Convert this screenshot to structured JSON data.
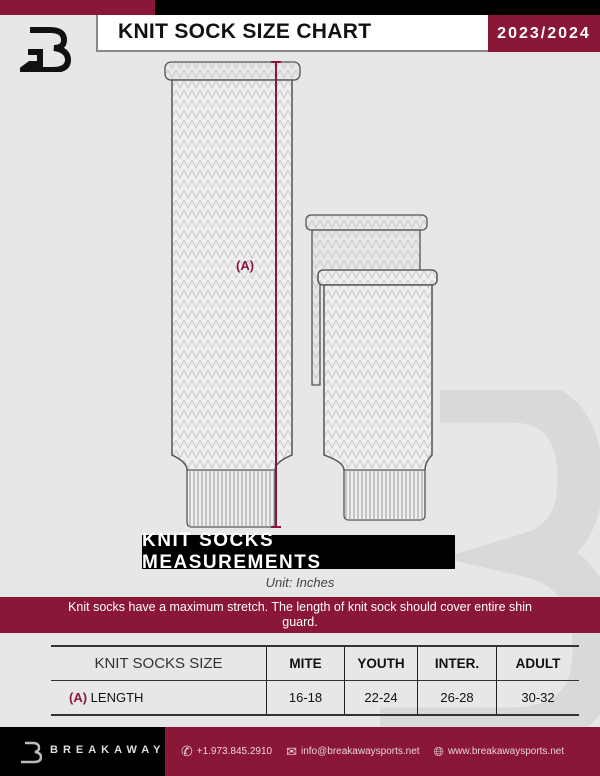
{
  "header": {
    "title": "KNIT SOCK SIZE CHART",
    "season": "2023/2024"
  },
  "diagram": {
    "measure_label": "(A)"
  },
  "banner": {
    "title": "KNIT SOCKS MEASUREMENTS",
    "unit": "Unit: Inches"
  },
  "note": "Knit socks have a maximum stretch. The length of knit sock should cover entire shin guard.",
  "table": {
    "header": [
      "KNIT SOCKS SIZE",
      "MITE",
      "YOUTH",
      "INTER.",
      "ADULT"
    ],
    "row": {
      "marker": "(A)",
      "label": "LENGTH",
      "values": [
        "16-18",
        "22-24",
        "26-28",
        "30-32"
      ]
    }
  },
  "footer": {
    "brand": "BREAKAWAY",
    "phone": "+1.973.845.2910",
    "email": "info@breakawaysports.net",
    "website": "www.breakawaysports.net"
  },
  "colors": {
    "accent": "#8a1738"
  }
}
